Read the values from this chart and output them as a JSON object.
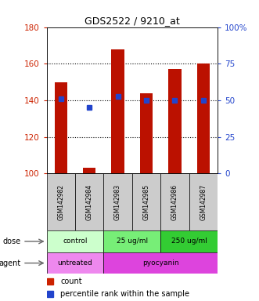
{
  "title": "GDS2522 / 9210_at",
  "samples": [
    "GSM142982",
    "GSM142984",
    "GSM142983",
    "GSM142985",
    "GSM142986",
    "GSM142987"
  ],
  "bar_values": [
    150,
    103,
    168,
    144,
    157,
    160
  ],
  "bar_base": 100,
  "blue_dot_values": [
    141,
    136,
    142,
    140,
    140,
    140
  ],
  "left_ylim": [
    100,
    180
  ],
  "left_yticks": [
    100,
    120,
    140,
    160,
    180
  ],
  "right_ylim": [
    0,
    100
  ],
  "right_yticks": [
    0,
    25,
    50,
    75,
    100
  ],
  "right_yticklabels": [
    "0",
    "25",
    "50",
    "75",
    "100%"
  ],
  "bar_color": "#bb1100",
  "blue_color": "#2244cc",
  "dose_row": [
    {
      "label": "control",
      "span": [
        0,
        2
      ],
      "color": "#ccffcc"
    },
    {
      "label": "25 ug/ml",
      "span": [
        2,
        4
      ],
      "color": "#77ee77"
    },
    {
      "label": "250 ug/ml",
      "span": [
        4,
        6
      ],
      "color": "#33cc33"
    }
  ],
  "agent_row": [
    {
      "label": "untreated",
      "span": [
        0,
        2
      ],
      "color": "#ee88ee"
    },
    {
      "label": "pyocyanin",
      "span": [
        2,
        6
      ],
      "color": "#dd44dd"
    }
  ],
  "dose_label": "dose",
  "agent_label": "agent",
  "legend_count_color": "#cc2200",
  "legend_blue_color": "#2244cc",
  "tick_color_left": "#cc2200",
  "tick_color_right": "#2244cc",
  "sample_bg_color": "#cccccc"
}
